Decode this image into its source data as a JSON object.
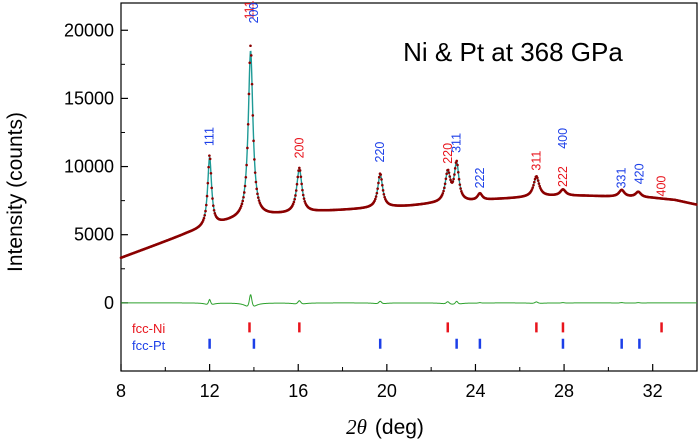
{
  "chart_data": {
    "type": "line",
    "title": "Ni & Pt at 368 GPa",
    "xlabel_symbol": "2θ",
    "xlabel_unit": "(deg)",
    "ylabel": "Intensity (counts)",
    "xlim": [
      8,
      34
    ],
    "ylim": [
      -5000,
      22000
    ],
    "x_ticks": [
      8,
      12,
      16,
      20,
      24,
      28,
      32
    ],
    "y_ticks": [
      0,
      5000,
      10000,
      15000,
      20000
    ],
    "colors": {
      "observed": "#8b0000",
      "fit": "#1e9a96",
      "difference": "#2ca02c",
      "ni": "#e8141c",
      "pt": "#1c3fe8",
      "axis": "#000000"
    },
    "background": {
      "x": [
        8,
        9,
        10,
        11,
        12,
        13,
        14,
        15,
        16,
        17,
        18,
        19,
        20,
        21,
        22,
        23,
        24,
        25,
        26,
        27,
        28,
        29,
        30,
        31,
        32,
        33,
        34
      ],
      "y": [
        3300,
        3900,
        4500,
        5100,
        5600,
        6000,
        6300,
        6450,
        6550,
        6700,
        6800,
        6900,
        7000,
        7100,
        7250,
        7350,
        7450,
        7600,
        7700,
        7800,
        7850,
        7850,
        7800,
        7750,
        7700,
        7550,
        7200
      ]
    },
    "peaks": [
      {
        "x": 12.0,
        "height": 5200,
        "width": 0.1
      },
      {
        "x": 13.85,
        "height": 12600,
        "width": 0.12
      },
      {
        "x": 16.05,
        "height": 3300,
        "width": 0.14
      },
      {
        "x": 19.7,
        "height": 2500,
        "width": 0.13
      },
      {
        "x": 22.75,
        "height": 2200,
        "width": 0.14
      },
      {
        "x": 23.15,
        "height": 2800,
        "width": 0.12
      },
      {
        "x": 24.2,
        "height": 500,
        "width": 0.13
      },
      {
        "x": 26.75,
        "height": 1500,
        "width": 0.15
      },
      {
        "x": 27.95,
        "height": 450,
        "width": 0.15
      },
      {
        "x": 30.6,
        "height": 500,
        "width": 0.15
      },
      {
        "x": 31.35,
        "height": 400,
        "width": 0.15
      }
    ],
    "reflections": [
      {
        "phase": "Pt",
        "hkl": "111",
        "x": 12.0,
        "y": 11500
      },
      {
        "phase": "Ni",
        "hkl": "111",
        "x": 13.8,
        "y": 20800
      },
      {
        "phase": "Pt",
        "hkl": "200",
        "x": 14.0,
        "y": 20500
      },
      {
        "phase": "Ni",
        "hkl": "200",
        "x": 16.05,
        "y": 10600
      },
      {
        "phase": "Pt",
        "hkl": "220",
        "x": 19.7,
        "y": 10300
      },
      {
        "phase": "Ni",
        "hkl": "220",
        "x": 22.75,
        "y": 10200
      },
      {
        "phase": "Pt",
        "hkl": "311",
        "x": 23.15,
        "y": 11000
      },
      {
        "phase": "Pt",
        "hkl": "222",
        "x": 24.2,
        "y": 8400
      },
      {
        "phase": "Ni",
        "hkl": "311",
        "x": 26.75,
        "y": 9700
      },
      {
        "phase": "Pt",
        "hkl": "400",
        "x": 27.95,
        "y": 11300
      },
      {
        "phase": "Ni",
        "hkl": "222",
        "x": 27.95,
        "y": 8500
      },
      {
        "phase": "Pt",
        "hkl": "331",
        "x": 30.6,
        "y": 8400
      },
      {
        "phase": "Pt",
        "hkl": "420",
        "x": 31.4,
        "y": 8700
      },
      {
        "phase": "Ni",
        "hkl": "400",
        "x": 32.4,
        "y": 7800
      }
    ],
    "tick_marks": {
      "Ni": [
        13.8,
        16.05,
        22.75,
        26.75,
        27.95,
        32.4
      ],
      "Pt": [
        12.0,
        14.0,
        19.7,
        23.15,
        24.2,
        27.95,
        30.6,
        31.4
      ],
      "ni_row_y": -1800,
      "pt_row_y": -3000
    },
    "legend": [
      {
        "label": "fcc-Ni",
        "color": "#e8141c"
      },
      {
        "label": "fcc-Pt",
        "color": "#1c3fe8"
      }
    ]
  }
}
